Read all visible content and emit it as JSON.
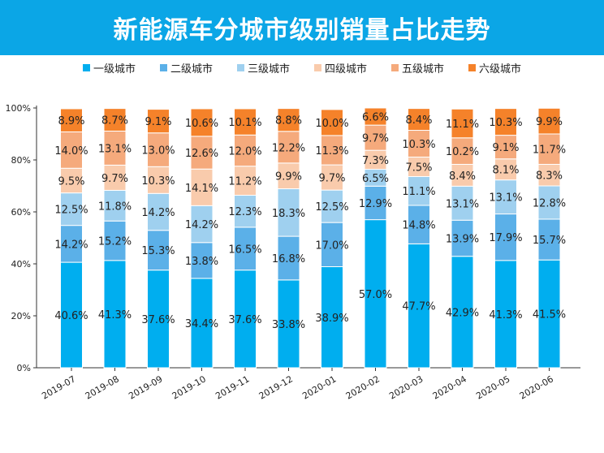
{
  "chart_data": {
    "type": "bar",
    "stacked": true,
    "title": "新能源车分城市级别销量占比走势",
    "categories": [
      "2019-07",
      "2019-08",
      "2019-09",
      "2019-10",
      "2019-11",
      "2019-12",
      "2020-01",
      "2020-02",
      "2020-03",
      "2020-04",
      "2020-05",
      "2020-06"
    ],
    "series": [
      {
        "name": "一级城市",
        "color": "#00aeef",
        "values": [
          40.6,
          41.3,
          37.6,
          34.4,
          37.6,
          33.8,
          38.9,
          57.0,
          47.7,
          42.9,
          41.3,
          41.5
        ]
      },
      {
        "name": "二级城市",
        "color": "#5bb0e8",
        "values": [
          14.2,
          15.2,
          15.3,
          13.8,
          16.5,
          16.8,
          17.0,
          12.9,
          14.8,
          13.9,
          17.9,
          15.7
        ]
      },
      {
        "name": "三级城市",
        "color": "#9fd0ef",
        "values": [
          12.5,
          11.8,
          14.2,
          14.2,
          12.3,
          18.3,
          12.5,
          6.5,
          11.1,
          13.1,
          13.1,
          12.8
        ]
      },
      {
        "name": "四级城市",
        "color": "#f9cbac",
        "values": [
          9.5,
          9.7,
          10.3,
          14.1,
          11.2,
          9.9,
          9.7,
          7.3,
          7.5,
          8.4,
          8.1,
          8.3
        ]
      },
      {
        "name": "五级城市",
        "color": "#f5aa7c",
        "values": [
          14.0,
          13.1,
          13.0,
          12.6,
          12.0,
          12.2,
          11.3,
          9.7,
          10.3,
          10.2,
          9.1,
          11.7
        ]
      },
      {
        "name": "六级城市",
        "color": "#f5822a",
        "values": [
          8.9,
          8.7,
          9.1,
          10.6,
          10.1,
          8.8,
          10.0,
          6.6,
          8.4,
          11.1,
          10.3,
          9.9
        ]
      }
    ],
    "yticks": [
      "0%",
      "20%",
      "40%",
      "60%",
      "80%",
      "100%"
    ],
    "ylim": [
      0,
      100
    ],
    "legend_position": "top",
    "grid": false
  }
}
